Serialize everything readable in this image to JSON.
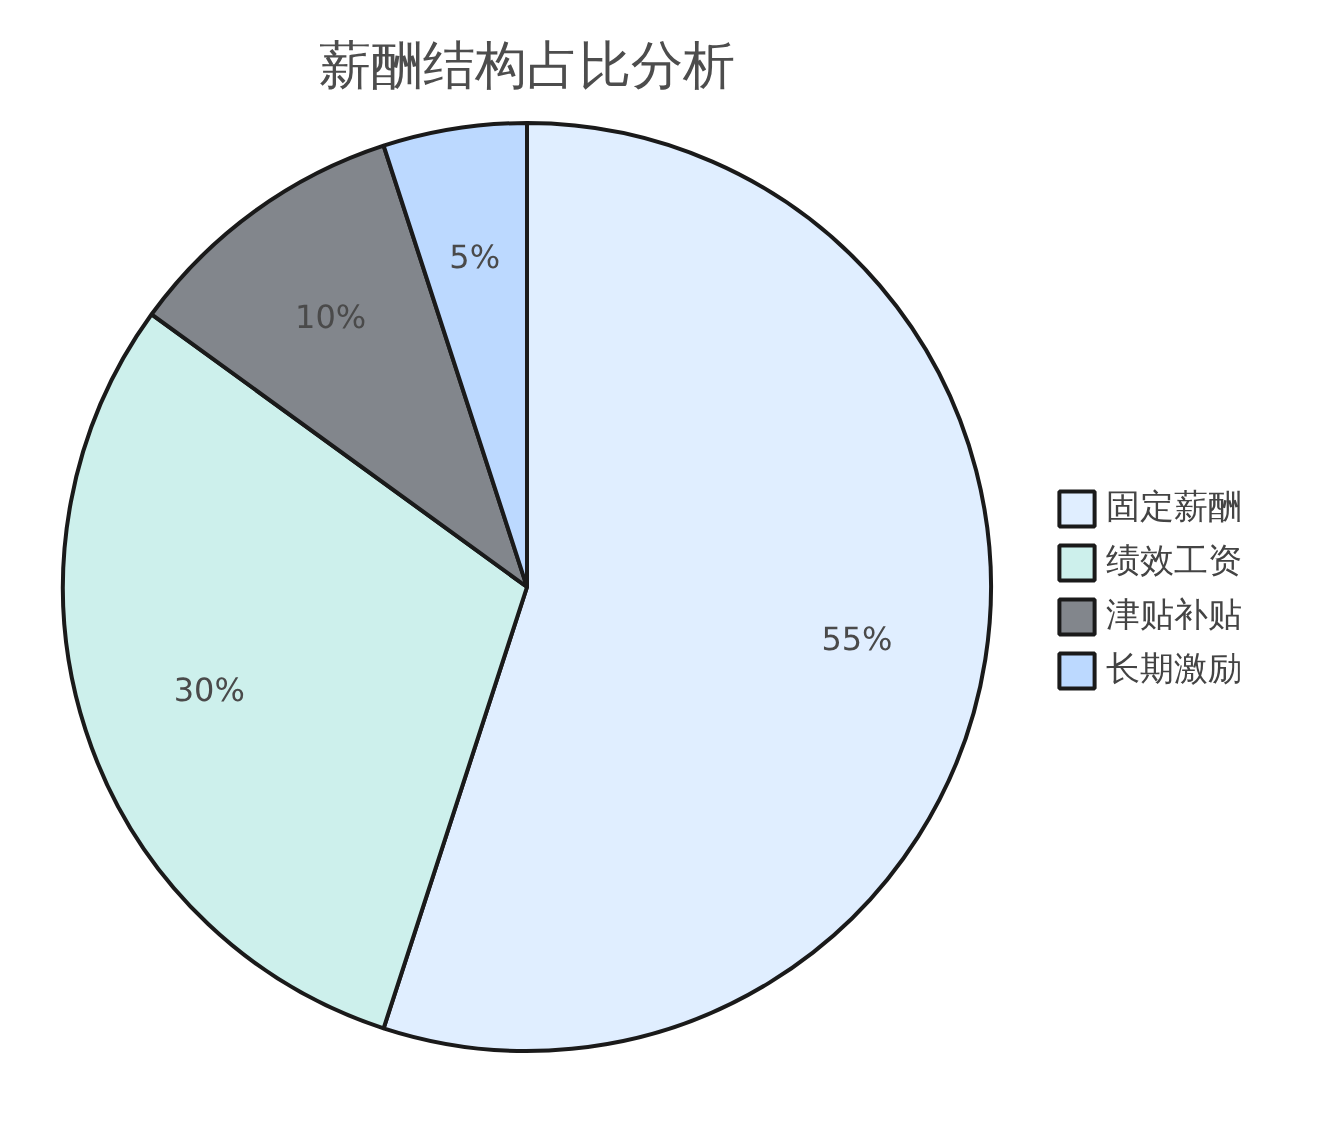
{
  "chart_data": {
    "type": "pie",
    "title": "薪酬结构占比分析",
    "categories": [
      "固定薪酬",
      "绩效工资",
      "津贴补贴",
      "长期激励"
    ],
    "values": [
      55,
      30,
      10,
      5
    ],
    "colors": [
      "#e0eeff",
      "#cdf0ec",
      "#82868c",
      "#bcd9ff"
    ],
    "value_labels": [
      "55%",
      "30%",
      "10%",
      "5%"
    ],
    "legend": "right"
  }
}
